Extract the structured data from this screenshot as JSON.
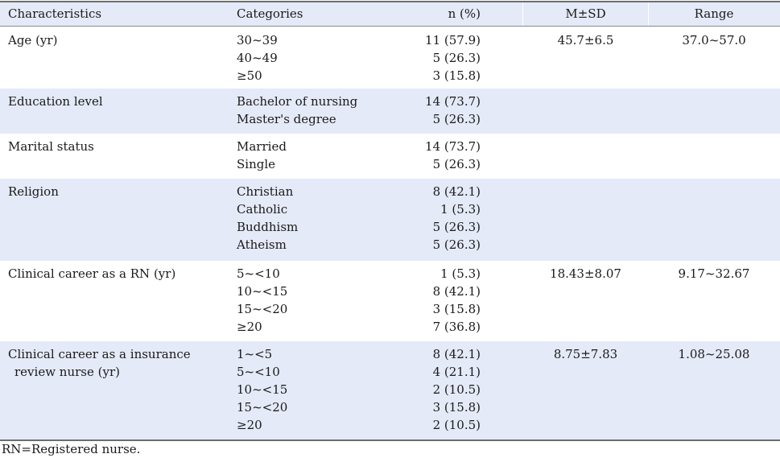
{
  "headers": [
    "Characteristics",
    "Categories",
    "n (%)",
    "M±SD",
    "Range"
  ],
  "rows": [
    {
      "characteristic": [
        "Age (yr)"
      ],
      "categories": [
        "30~39",
        "40~49",
        "≥50"
      ],
      "n": [
        "11 (57.9)",
        "5 (26.3)",
        "3 (15.8)"
      ],
      "msd": "45.7±6.5",
      "range": "37.0~57.0"
    },
    {
      "characteristic": [
        "Education level"
      ],
      "categories": [
        "Bachelor of nursing",
        "Master's degree"
      ],
      "n": [
        "14 (73.7)",
        "5 (26.3)"
      ],
      "msd": "",
      "range": ""
    },
    {
      "characteristic": [
        "Marital status"
      ],
      "categories": [
        "Married",
        "Single"
      ],
      "n": [
        "14 (73.7)",
        "5 (26.3)"
      ],
      "msd": "",
      "range": ""
    },
    {
      "characteristic": [
        "Religion"
      ],
      "categories": [
        "Christian",
        "Catholic",
        "Buddhism",
        "Atheism"
      ],
      "n": [
        "8 (42.1)",
        "1 (5.3)",
        "5 (26.3)",
        "5 (26.3)"
      ],
      "msd": "",
      "range": ""
    },
    {
      "characteristic": [
        "Clinical career as a RN (yr)"
      ],
      "categories": [
        "5~<10",
        "10~<15",
        "15~<20",
        "≥20"
      ],
      "n": [
        "1 (5.3)",
        "8 (42.1)",
        "3 (15.8)",
        "7 (36.8)"
      ],
      "msd": "18.43±8.07",
      "range": "9.17~32.67"
    },
    {
      "characteristic": [
        "Clinical career as a insurance",
        "review nurse (yr)"
      ],
      "categories": [
        "1~<5",
        "5~<10",
        "10~<15",
        "15~<20",
        "≥20"
      ],
      "n": [
        "8 (42.1)",
        "4 (21.1)",
        "2 (10.5)",
        "3 (15.8)",
        "2 (10.5)"
      ],
      "msd": "8.75±7.83",
      "range": "1.08~25.08"
    }
  ],
  "footnote": "RN=Registered nurse."
}
